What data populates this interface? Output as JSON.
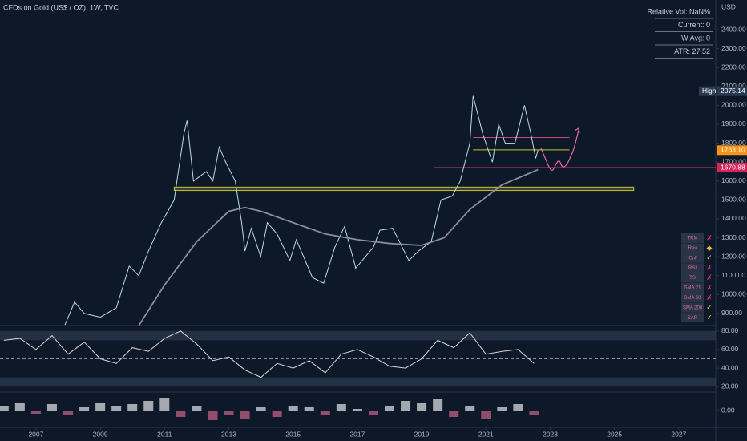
{
  "header": {
    "title": "CFDs on Gold (US$ / OZ), 1W, TVC",
    "currency": "USD"
  },
  "chart_data": [
    {
      "type": "line",
      "xlim": [
        2005.88,
        2028.15
      ],
      "ylim": [
        836,
        2557
      ],
      "xticks": [
        2007,
        2009,
        2011,
        2013,
        2015,
        2017,
        2019,
        2021,
        2023,
        2025,
        2027
      ],
      "yticks": [
        {
          "value": 900,
          "label": "900.00"
        },
        {
          "value": 1000,
          "label": "1000.00"
        },
        {
          "value": 1100,
          "label": "1100.00"
        },
        {
          "value": 1200,
          "label": "1200.00"
        },
        {
          "value": 1300,
          "label": "1300.00"
        },
        {
          "value": 1400,
          "label": "1400.00"
        },
        {
          "value": 1500,
          "label": "1500.00"
        },
        {
          "value": 1600,
          "label": "1600.00"
        },
        {
          "value": 1700,
          "label": "1700.00"
        },
        {
          "value": 1800,
          "label": "1800.00"
        },
        {
          "value": 1900,
          "label": "1900.00"
        },
        {
          "value": 2000,
          "label": "2000.00"
        },
        {
          "value": 2100,
          "label": "2100.00"
        },
        {
          "value": 2200,
          "label": "2200.00"
        },
        {
          "value": 2300,
          "label": "2300.00"
        },
        {
          "value": 2400,
          "label": "2400.00"
        }
      ],
      "series": [
        {
          "name": "Price",
          "color": "#b9dde4",
          "x": [
            2007.9,
            2008.2,
            2008.5,
            2009.0,
            2009.5,
            2009.9,
            2010.2,
            2010.5,
            2010.9,
            2011.3,
            2011.6,
            2011.7,
            2011.9,
            2012.3,
            2012.5,
            2012.7,
            2012.9,
            2013.2,
            2013.4,
            2013.5,
            2013.7,
            2013.99,
            2014.2,
            2014.5,
            2014.9,
            2015.1,
            2015.6,
            2015.95,
            2016.3,
            2016.6,
            2016.95,
            2017.5,
            2017.7,
            2018.1,
            2018.6,
            2018.9,
            2019.3,
            2019.6,
            2019.95,
            2020.2,
            2020.5,
            2020.6,
            2020.9,
            2021.2,
            2021.4,
            2021.6,
            2021.9,
            2022.2,
            2022.4,
            2022.55,
            2022.62
          ],
          "values": [
            840,
            960,
            900,
            880,
            930,
            1150,
            1100,
            1230,
            1380,
            1500,
            1850,
            1920,
            1600,
            1650,
            1600,
            1780,
            1700,
            1600,
            1380,
            1230,
            1350,
            1200,
            1380,
            1320,
            1180,
            1290,
            1090,
            1060,
            1250,
            1360,
            1140,
            1250,
            1340,
            1350,
            1180,
            1230,
            1280,
            1500,
            1520,
            1600,
            1800,
            2050,
            1850,
            1700,
            1900,
            1800,
            1800,
            2000,
            1850,
            1720,
            1763.1
          ]
        },
        {
          "name": "SMA 200",
          "color": "#8a8f99",
          "x": [
            2010.2,
            2011,
            2012,
            2013,
            2013.5,
            2014,
            2015,
            2016,
            2017,
            2018,
            2019,
            2019.7,
            2020.5,
            2021.5,
            2022.62
          ],
          "values": [
            836,
            1050,
            1280,
            1440,
            1460,
            1440,
            1380,
            1320,
            1290,
            1270,
            1260,
            1300,
            1450,
            1580,
            1660
          ]
        }
      ],
      "zone": {
        "low": 1550,
        "high": 1568,
        "from": 2011.3,
        "to": 2025.6,
        "color": "#c8c23a"
      },
      "levels": [
        {
          "value": 1830,
          "from": 2020.6,
          "to": 2023.6,
          "color": "#c94a6a"
        },
        {
          "value": 1765,
          "from": 2020.6,
          "to": 2023.6,
          "color": "#c8c23a"
        },
        {
          "value": 1670.88,
          "from": 2019.4,
          "to": 2028.15,
          "color": "#e0336b"
        }
      ],
      "price_labels": [
        {
          "tag": "High",
          "value": 2075.14,
          "label": "2075.14",
          "color": "#2a3a52"
        },
        {
          "value": 1763.1,
          "label": "1763.10",
          "color": "#f7931a"
        },
        {
          "value": 1670.88,
          "label": "1670.88",
          "color": "#d6245a"
        }
      ]
    },
    {
      "type": "line",
      "xlim": [
        2005.88,
        2028.15
      ],
      "ylim": [
        15,
        85
      ],
      "yticks": [
        {
          "value": 80,
          "label": "80.00"
        },
        {
          "value": 60,
          "label": "60.00"
        },
        {
          "value": 40,
          "label": "40.00"
        },
        {
          "value": 20,
          "label": "20.00"
        }
      ],
      "bands": [
        [
          70,
          80
        ],
        [
          20,
          30
        ]
      ],
      "midline": 50,
      "series": [
        {
          "name": "RSI",
          "color": "#d6d8dc",
          "x": [
            2006.0,
            2006.5,
            2007.0,
            2007.5,
            2008.0,
            2008.5,
            2009.0,
            2009.5,
            2010.0,
            2010.5,
            2011.0,
            2011.5,
            2012.0,
            2012.5,
            2013.0,
            2013.5,
            2014.0,
            2014.5,
            2015.0,
            2015.5,
            2016.0,
            2016.5,
            2017.0,
            2017.5,
            2018.0,
            2018.5,
            2019.0,
            2019.5,
            2020.0,
            2020.5,
            2021.0,
            2021.5,
            2022.0,
            2022.5
          ],
          "values": [
            70,
            72,
            60,
            75,
            55,
            68,
            50,
            45,
            62,
            58,
            72,
            80,
            66,
            48,
            52,
            38,
            30,
            45,
            40,
            48,
            35,
            55,
            60,
            52,
            42,
            40,
            50,
            70,
            62,
            78,
            55,
            58,
            60,
            45
          ]
        }
      ]
    },
    {
      "type": "bar",
      "xlim": [
        2005.88,
        2028.15
      ],
      "ylim": [
        -1,
        1
      ],
      "yticks": [
        {
          "value": 0,
          "label": "0.00"
        }
      ],
      "up_color": "#e6e6ea",
      "down_color": "#d0648a",
      "x": [
        2006.0,
        2006.5,
        2007.0,
        2007.5,
        2008.0,
        2008.5,
        2009.0,
        2009.5,
        2010.0,
        2010.5,
        2011.0,
        2011.5,
        2012.0,
        2012.5,
        2013.0,
        2013.5,
        2014.0,
        2014.5,
        2015.0,
        2015.5,
        2016.0,
        2016.5,
        2017.0,
        2017.5,
        2018.0,
        2018.5,
        2019.0,
        2019.5,
        2020.0,
        2020.5,
        2021.0,
        2021.5,
        2022.0,
        2022.5
      ],
      "values": [
        0.3,
        0.5,
        -0.2,
        0.4,
        -0.3,
        0.2,
        0.5,
        0.3,
        0.4,
        0.6,
        0.8,
        -0.4,
        0.3,
        -0.6,
        -0.3,
        -0.5,
        0.2,
        -0.4,
        0.3,
        0.2,
        -0.3,
        0.4,
        0.1,
        -0.3,
        0.3,
        0.6,
        0.5,
        0.7,
        -0.4,
        0.3,
        -0.5,
        0.2,
        0.4,
        -0.3
      ]
    }
  ],
  "stats": [
    "Relative Vol: NaN%",
    "Current: 0",
    "W Avg: 0",
    "ATR: 27.52"
  ],
  "signals": [
    {
      "name": "TRM",
      "mark": "✗"
    },
    {
      "name": "Rev",
      "mark": "◆"
    },
    {
      "name": "Cnf",
      "mark": "✓"
    },
    {
      "name": "RSI",
      "mark": "✗"
    },
    {
      "name": "TS",
      "mark": "✗"
    },
    {
      "name": "SMA 21",
      "mark": "✗"
    },
    {
      "name": "SMA 50",
      "mark": "✗"
    },
    {
      "name": "SMA 200",
      "mark": "✓"
    },
    {
      "name": "SAR",
      "mark": "✓"
    }
  ]
}
